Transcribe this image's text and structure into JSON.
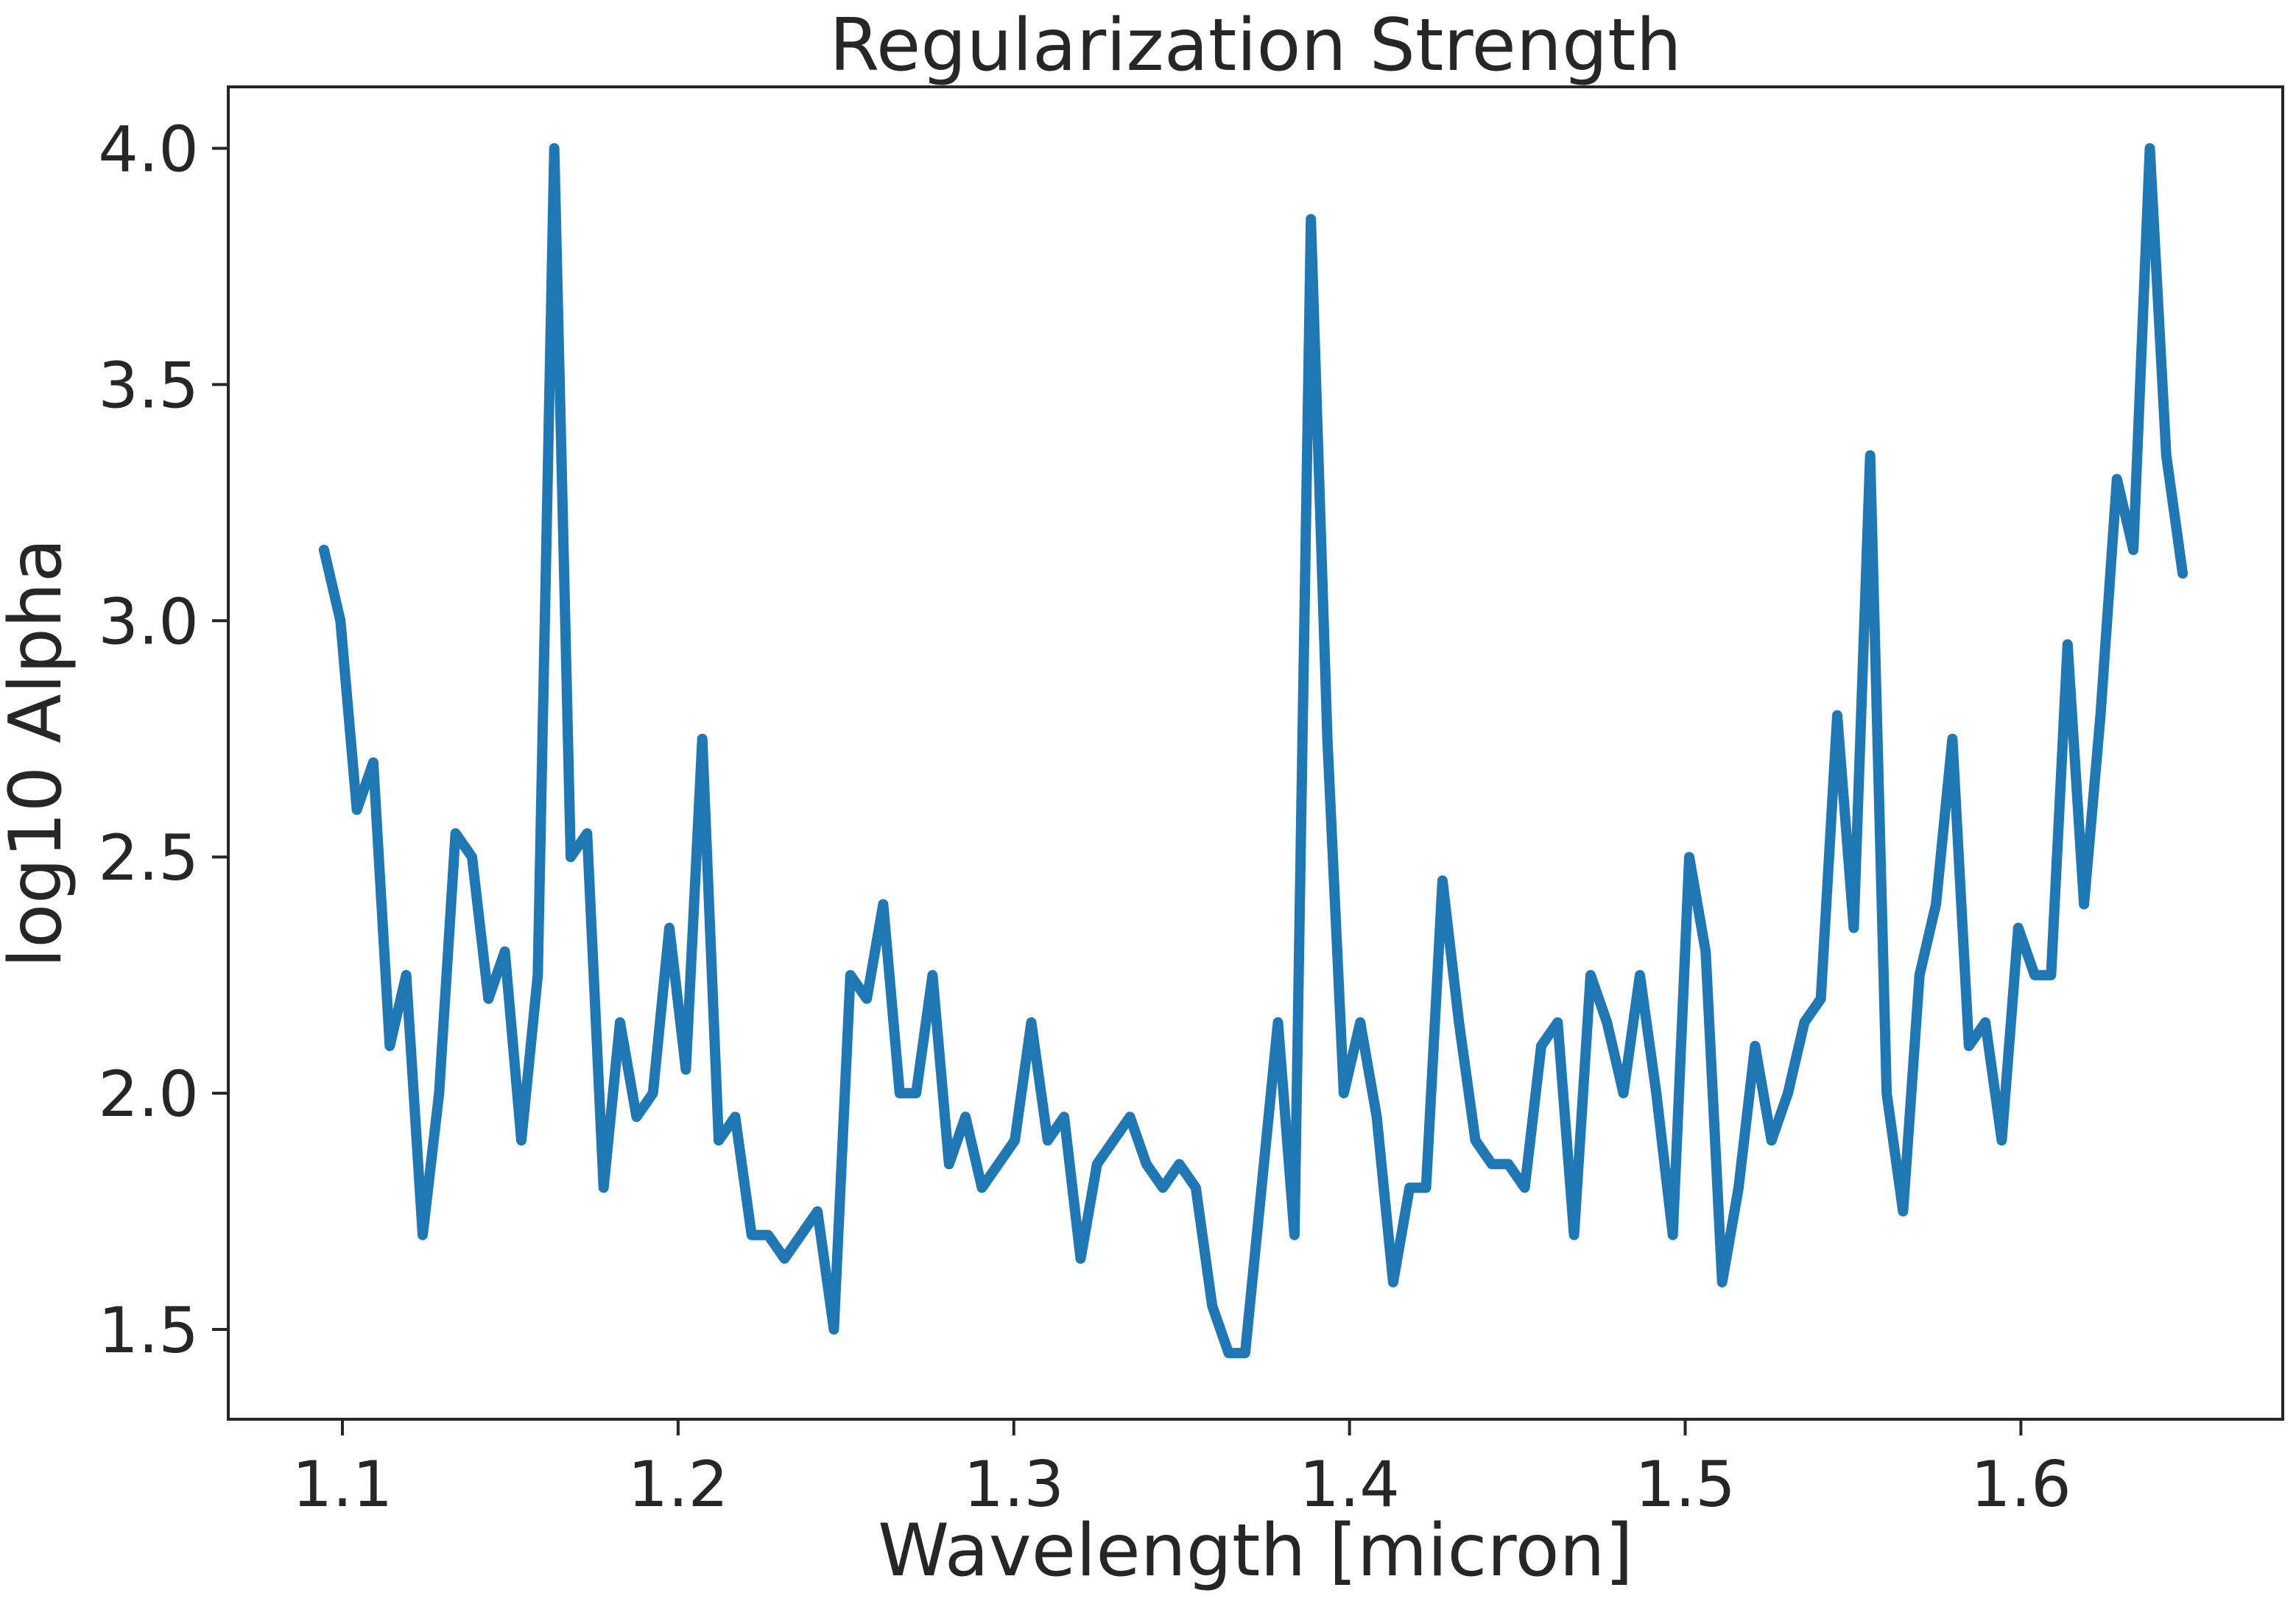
{
  "chart_data": {
    "type": "line",
    "title": "Regularization Strength",
    "xlabel": "Wavelength [micron]",
    "ylabel": "log10 Alpha",
    "xlim": [
      1.066,
      1.678
    ],
    "ylim": [
      1.31,
      4.13
    ],
    "xticks": [
      1.1,
      1.2,
      1.3,
      1.4,
      1.5,
      1.6
    ],
    "xtick_labels": [
      "1.1",
      "1.2",
      "1.3",
      "1.4",
      "1.5",
      "1.6"
    ],
    "yticks": [
      1.5,
      2.0,
      2.5,
      3.0,
      3.5,
      4.0
    ],
    "ytick_labels": [
      "1.5",
      "2.0",
      "2.5",
      "3.0",
      "3.5",
      "4.0"
    ],
    "grid": false,
    "line_color": "#1f77b4",
    "series": [
      {
        "x": [
          1.0945,
          1.0994,
          1.1043,
          1.1092,
          1.1141,
          1.119,
          1.1239,
          1.1288,
          1.1337,
          1.1386,
          1.1435,
          1.1484,
          1.1533,
          1.1582,
          1.1631,
          1.168,
          1.1729,
          1.1778,
          1.1827,
          1.1876,
          1.1925,
          1.1974,
          1.2023,
          1.2072,
          1.2121,
          1.217,
          1.2219,
          1.2268,
          1.2317,
          1.2366,
          1.2415,
          1.2464,
          1.2513,
          1.2562,
          1.2611,
          1.266,
          1.2709,
          1.2758,
          1.2807,
          1.2856,
          1.2905,
          1.2954,
          1.3003,
          1.3052,
          1.3101,
          1.315,
          1.3199,
          1.3248,
          1.3297,
          1.3346,
          1.3395,
          1.3444,
          1.3493,
          1.3542,
          1.3591,
          1.364,
          1.3689,
          1.3738,
          1.3787,
          1.3836,
          1.3885,
          1.3934,
          1.3983,
          1.4032,
          1.4081,
          1.413,
          1.4179,
          1.4228,
          1.4277,
          1.4326,
          1.4375,
          1.4424,
          1.4473,
          1.4522,
          1.4571,
          1.462,
          1.4669,
          1.4718,
          1.4767,
          1.4816,
          1.4865,
          1.4914,
          1.4963,
          1.5012,
          1.5061,
          1.511,
          1.5159,
          1.5208,
          1.5257,
          1.5306,
          1.5355,
          1.5404,
          1.5453,
          1.5502,
          1.5551,
          1.56,
          1.5649,
          1.5698,
          1.5747,
          1.5796,
          1.5845,
          1.5894,
          1.5943,
          1.5992,
          1.6041,
          1.609,
          1.6139,
          1.6188,
          1.6237,
          1.6286,
          1.6335,
          1.6384,
          1.6433,
          1.6482
        ],
        "y": [
          3.15,
          3.0,
          2.6,
          2.7,
          2.1,
          2.25,
          1.7,
          2.0,
          2.55,
          2.5,
          2.2,
          2.3,
          1.9,
          2.25,
          4.0,
          2.5,
          2.55,
          1.8,
          2.15,
          1.95,
          2.0,
          2.35,
          2.05,
          2.75,
          1.9,
          1.95,
          1.7,
          1.7,
          1.65,
          1.7,
          1.75,
          1.5,
          2.25,
          2.2,
          2.4,
          2.0,
          2.0,
          2.25,
          1.85,
          1.95,
          1.8,
          1.85,
          1.9,
          2.15,
          1.9,
          1.95,
          1.65,
          1.85,
          1.9,
          1.95,
          1.85,
          1.8,
          1.85,
          1.8,
          1.55,
          1.45,
          1.45,
          1.8,
          2.15,
          1.7,
          3.85,
          2.75,
          2.0,
          2.15,
          1.95,
          1.6,
          1.8,
          1.8,
          2.45,
          2.15,
          1.9,
          1.85,
          1.85,
          1.8,
          2.1,
          2.15,
          1.7,
          2.25,
          2.15,
          2.0,
          2.25,
          2.0,
          1.7,
          2.5,
          2.3,
          1.6,
          1.8,
          2.1,
          1.9,
          2.0,
          2.15,
          2.2,
          2.8,
          2.35,
          3.35,
          2.0,
          1.75,
          2.25,
          2.4,
          2.75,
          2.1,
          2.15,
          1.9,
          2.35,
          2.25,
          2.25,
          2.95,
          2.4,
          2.8,
          3.3,
          3.15,
          4.0,
          3.35,
          3.1
        ]
      }
    ]
  }
}
